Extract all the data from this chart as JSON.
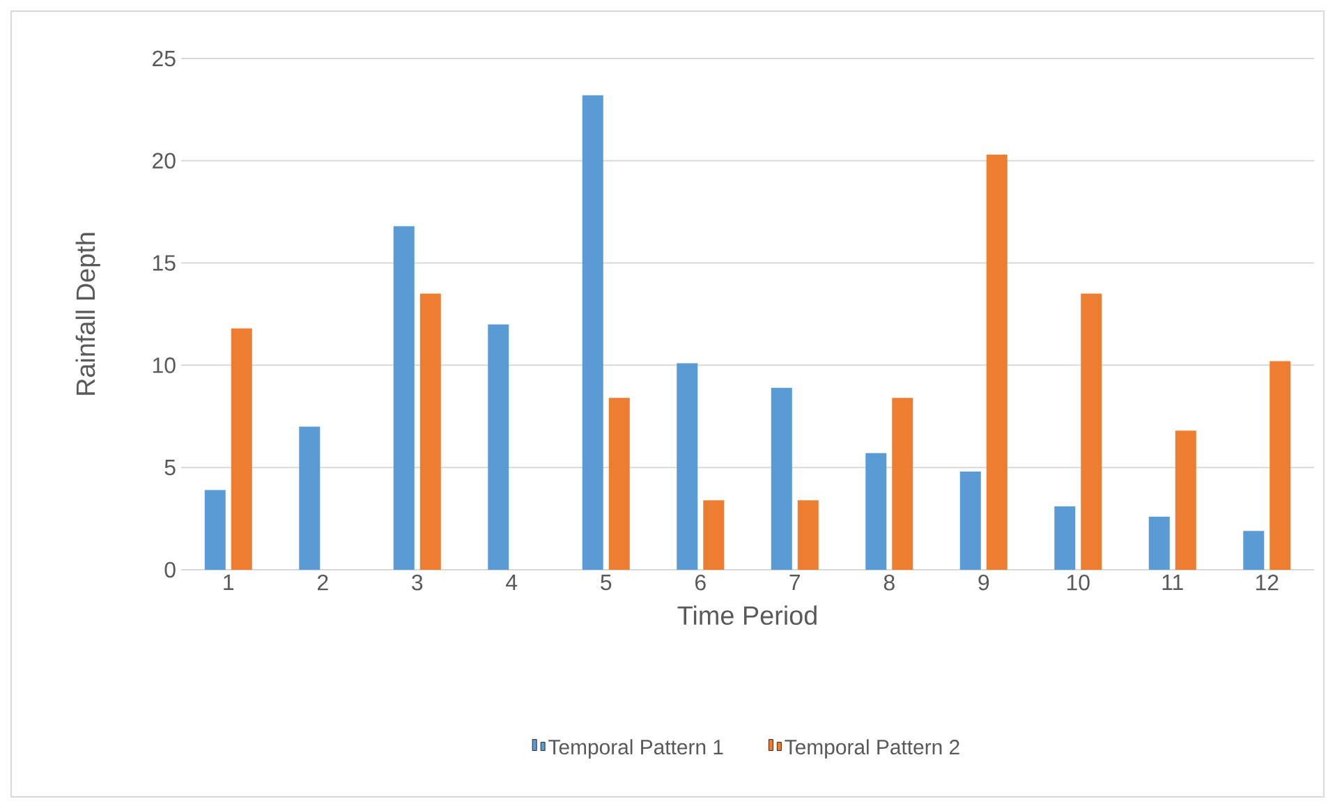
{
  "chart_data": {
    "type": "bar",
    "xlabel": "Time Period",
    "ylabel": "Rainfall Depth",
    "categories": [
      "1",
      "2",
      "3",
      "4",
      "5",
      "6",
      "7",
      "8",
      "9",
      "10",
      "11",
      "12"
    ],
    "series": [
      {
        "name": "Temporal Pattern 1",
        "color": "#5b9bd5",
        "values": [
          3.9,
          7.0,
          16.8,
          12.0,
          23.2,
          10.1,
          8.9,
          5.7,
          4.8,
          3.1,
          2.6,
          1.9
        ]
      },
      {
        "name": "Temporal Pattern 2",
        "color": "#ed7d31",
        "values": [
          11.8,
          0,
          13.5,
          0,
          8.4,
          3.4,
          3.4,
          8.4,
          20.3,
          13.5,
          6.8,
          10.2
        ]
      }
    ],
    "ylim": [
      0,
      25
    ],
    "yticks": [
      0,
      5,
      10,
      15,
      20,
      25
    ],
    "grid": "y",
    "legend": "bottom"
  }
}
